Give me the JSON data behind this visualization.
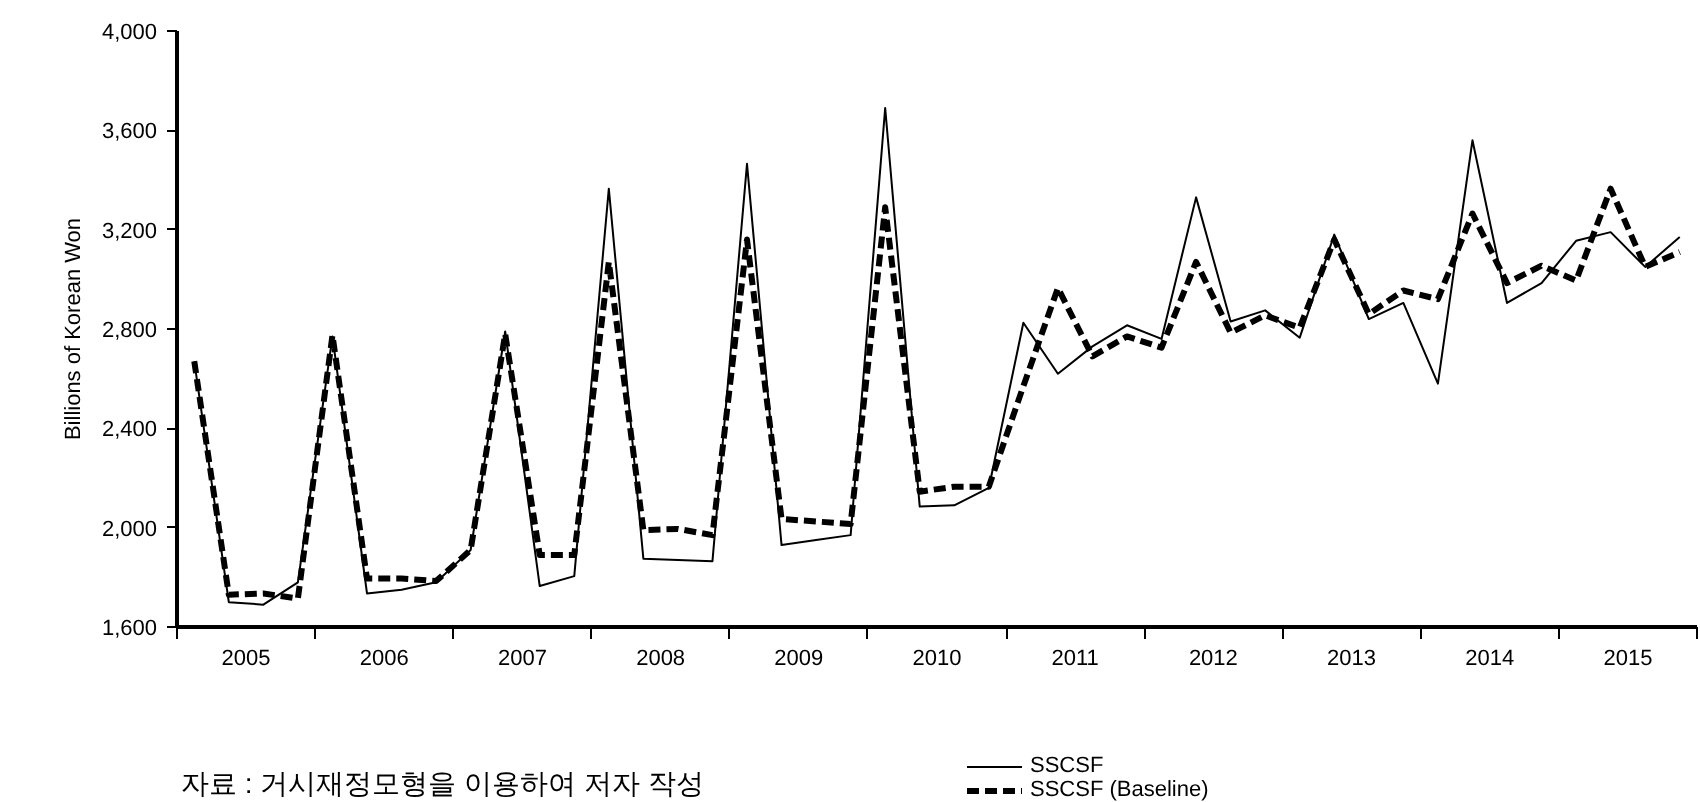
{
  "chart_data": {
    "type": "line",
    "ylabel": "Billions of Korean Won",
    "x": [
      2005.125,
      2005.375,
      2005.625,
      2005.875,
      2006.125,
      2006.375,
      2006.625,
      2006.875,
      2007.125,
      2007.375,
      2007.625,
      2007.875,
      2008.125,
      2008.375,
      2008.625,
      2008.875,
      2009.125,
      2009.375,
      2009.625,
      2009.875,
      2010.125,
      2010.375,
      2010.625,
      2010.875,
      2011.125,
      2011.375,
      2011.625,
      2011.875,
      2012.125,
      2012.375,
      2012.625,
      2012.875,
      2013.125,
      2013.375,
      2013.625,
      2013.875,
      2014.125,
      2014.375,
      2014.625,
      2014.875,
      2015.125,
      2015.375,
      2015.625,
      2015.875
    ],
    "series": [
      {
        "name": "SSCSF",
        "color": "#000000",
        "line_style": "solid",
        "values": [
          2670,
          1700,
          1690,
          1780,
          2770,
          1735,
          1750,
          1780,
          1910,
          2790,
          1765,
          1805,
          3365,
          1875,
          1870,
          1865,
          3465,
          1930,
          1950,
          1970,
          3690,
          2085,
          2090,
          2160,
          2825,
          2620,
          2730,
          2815,
          2760,
          3330,
          2830,
          2875,
          2765,
          3180,
          2840,
          2905,
          2580,
          3560,
          2905,
          2985,
          3155,
          3190,
          3050,
          3170
        ]
      },
      {
        "name": "SSCSF (Baseline)",
        "color": "#000000",
        "line_style": "dashed",
        "values": [
          2670,
          1730,
          1735,
          1715,
          2775,
          1795,
          1795,
          1785,
          1910,
          2780,
          1890,
          1890,
          3070,
          1990,
          1995,
          1970,
          3160,
          2035,
          2025,
          2015,
          3290,
          2145,
          2165,
          2165,
          2570,
          2965,
          2690,
          2770,
          2725,
          3070,
          2785,
          2855,
          2805,
          3160,
          2860,
          2955,
          2920,
          3265,
          2985,
          3055,
          2995,
          3365,
          3050,
          3110
        ]
      }
    ],
    "xlim": [
      2005,
      2016
    ],
    "xticks": [
      {
        "value": 2005,
        "label": null
      },
      {
        "value": 2005.5,
        "label": "2005"
      },
      {
        "value": 2006,
        "label": null
      },
      {
        "value": 2006.5,
        "label": "2006"
      },
      {
        "value": 2007,
        "label": null
      },
      {
        "value": 2007.5,
        "label": "2007"
      },
      {
        "value": 2008,
        "label": null
      },
      {
        "value": 2008.5,
        "label": "2008"
      },
      {
        "value": 2009,
        "label": null
      },
      {
        "value": 2009.5,
        "label": "2009"
      },
      {
        "value": 2010,
        "label": null
      },
      {
        "value": 2010.5,
        "label": "2010"
      },
      {
        "value": 2011,
        "label": null
      },
      {
        "value": 2011.5,
        "label": "2011"
      },
      {
        "value": 2012,
        "label": null
      },
      {
        "value": 2012.5,
        "label": "2012"
      },
      {
        "value": 2013,
        "label": null
      },
      {
        "value": 2013.5,
        "label": "2013"
      },
      {
        "value": 2014,
        "label": null
      },
      {
        "value": 2014.5,
        "label": "2014"
      },
      {
        "value": 2015,
        "label": null
      },
      {
        "value": 2015.5,
        "label": "2015"
      },
      {
        "value": 2016,
        "label": null
      }
    ],
    "ylim": [
      1600,
      4000
    ],
    "yticks": [
      {
        "value": 1600,
        "label": "1,600"
      },
      {
        "value": 2000,
        "label": "2,000"
      },
      {
        "value": 2400,
        "label": "2,400"
      },
      {
        "value": 2800,
        "label": "2,800"
      },
      {
        "value": 3200,
        "label": "3,200"
      },
      {
        "value": 3600,
        "label": "3,600"
      },
      {
        "value": 4000,
        "label": "4,000"
      }
    ],
    "grid": false,
    "legend": "bottom",
    "marker": "none",
    "annotations": [
      "자료 : 거시재정모형을 이용하여 저자 작성"
    ]
  }
}
